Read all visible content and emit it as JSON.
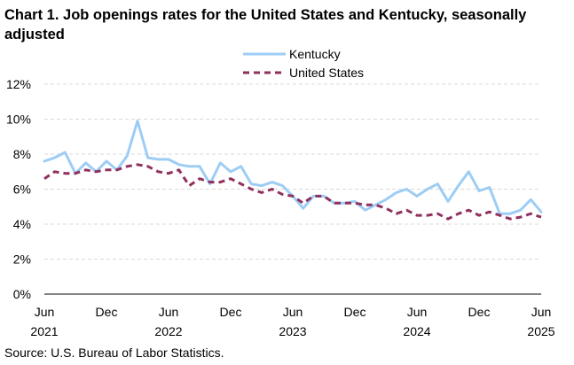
{
  "chart_data": {
    "type": "line",
    "title": "Chart 1. Job openings rates for the United States and Kentucky, seasonally adjusted",
    "source": "Source: U.S. Bureau of Labor Statistics.",
    "xlabel": "",
    "ylabel": "",
    "ylim": [
      0,
      12
    ],
    "y_ticks": [
      "0%",
      "2%",
      "4%",
      "6%",
      "8%",
      "10%",
      "12%"
    ],
    "x_ticks": [
      {
        "month": "Jun",
        "year": "2021"
      },
      {
        "month": "Dec",
        "year": ""
      },
      {
        "month": "Jun",
        "year": "2022"
      },
      {
        "month": "Dec",
        "year": ""
      },
      {
        "month": "Jun",
        "year": "2023"
      },
      {
        "month": "Dec",
        "year": ""
      },
      {
        "month": "Jun",
        "year": "2024"
      },
      {
        "month": "Dec",
        "year": ""
      },
      {
        "month": "Jun",
        "year": "2025"
      }
    ],
    "grid": true,
    "legend_position": "top-center",
    "x": [
      "2021-06",
      "2021-07",
      "2021-08",
      "2021-09",
      "2021-10",
      "2021-11",
      "2021-12",
      "2022-01",
      "2022-02",
      "2022-03",
      "2022-04",
      "2022-05",
      "2022-06",
      "2022-07",
      "2022-08",
      "2022-09",
      "2022-10",
      "2022-11",
      "2022-12",
      "2023-01",
      "2023-02",
      "2023-03",
      "2023-04",
      "2023-05",
      "2023-06",
      "2023-07",
      "2023-08",
      "2023-09",
      "2023-10",
      "2023-11",
      "2023-12",
      "2024-01",
      "2024-02",
      "2024-03",
      "2024-04",
      "2024-05",
      "2024-06",
      "2024-07",
      "2024-08",
      "2024-09",
      "2024-10",
      "2024-11",
      "2024-12",
      "2025-01",
      "2025-02",
      "2025-03",
      "2025-04",
      "2025-05",
      "2025-06"
    ],
    "series": [
      {
        "name": "Kentucky",
        "color": "#9dcdf5",
        "dash": "solid",
        "values": [
          7.6,
          7.8,
          8.1,
          6.9,
          7.5,
          7.0,
          7.6,
          7.1,
          7.9,
          9.9,
          7.8,
          7.7,
          7.7,
          7.4,
          7.3,
          7.3,
          6.3,
          7.5,
          7.0,
          7.3,
          6.3,
          6.2,
          6.4,
          6.2,
          5.6,
          4.9,
          5.6,
          5.6,
          5.2,
          5.2,
          5.3,
          4.8,
          5.1,
          5.4,
          5.8,
          6.0,
          5.6,
          6.0,
          6.3,
          5.3,
          6.2,
          7.0,
          5.9,
          6.1,
          4.6,
          4.6,
          4.8,
          5.4,
          4.7
        ]
      },
      {
        "name": "United States",
        "color": "#90305e",
        "dash": "dashed",
        "values": [
          6.6,
          7.0,
          6.9,
          6.9,
          7.1,
          7.0,
          7.1,
          7.1,
          7.3,
          7.4,
          7.3,
          7.0,
          6.9,
          7.1,
          6.2,
          6.6,
          6.4,
          6.4,
          6.6,
          6.3,
          6.0,
          5.8,
          6.0,
          5.7,
          5.6,
          5.2,
          5.6,
          5.6,
          5.2,
          5.2,
          5.2,
          5.1,
          5.1,
          4.9,
          4.6,
          4.8,
          4.5,
          4.5,
          4.6,
          4.3,
          4.6,
          4.8,
          4.5,
          4.7,
          4.5,
          4.3,
          4.4,
          4.6,
          4.4
        ]
      }
    ]
  }
}
